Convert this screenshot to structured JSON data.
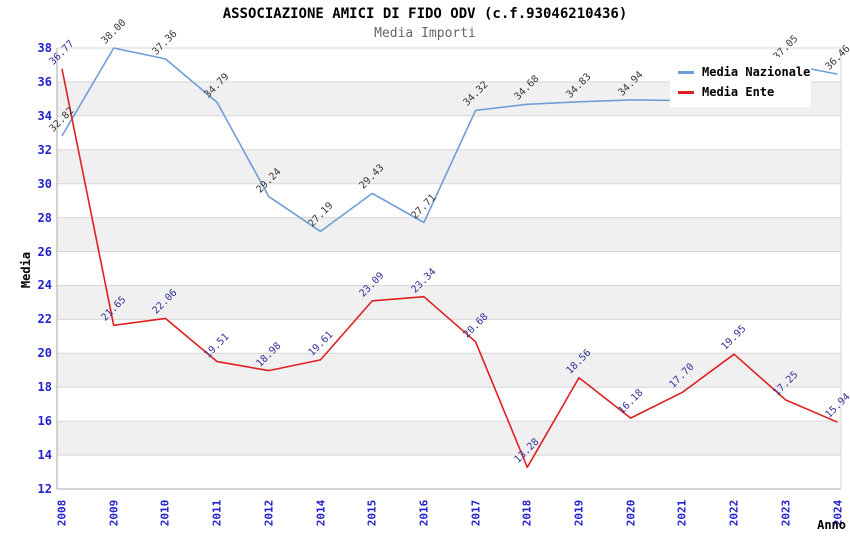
{
  "chart_data": {
    "type": "line",
    "title": "ASSOCIAZIONE AMICI DI FIDO ODV (c.f.93046210436)",
    "subtitle": "Media Importi",
    "xlabel": "Anno",
    "ylabel": "Media",
    "categories": [
      "2008",
      "2009",
      "2010",
      "2011",
      "2012",
      "2014",
      "2015",
      "2016",
      "2017",
      "2018",
      "2019",
      "2020",
      "2021",
      "2022",
      "2023",
      "2024"
    ],
    "ylim": [
      12,
      38
    ],
    "yticks": [
      12,
      14,
      16,
      18,
      20,
      22,
      24,
      26,
      28,
      30,
      32,
      34,
      36,
      38
    ],
    "grid": "horizontal gridlines with alternating gray bands",
    "legend_position": "top-right",
    "series": [
      {
        "name": "Media Nazionale",
        "color": "#6e9ed6",
        "label_color": "#3a3a3a",
        "values": [
          32.82,
          38.0,
          37.36,
          34.79,
          29.24,
          27.19,
          29.43,
          27.71,
          34.32,
          34.68,
          34.83,
          34.94,
          34.9,
          34.92,
          37.05,
          36.46
        ],
        "labels": [
          "32.82",
          "38.00",
          "37.36",
          "34.79",
          "29.24",
          "27.19",
          "29.43",
          "27.71",
          "34.32",
          "34.68",
          "34.83",
          "34.94",
          null,
          null,
          "37.05",
          "36.46"
        ]
      },
      {
        "name": "Media Ente",
        "color": "#e02020",
        "label_color": "#333399",
        "values": [
          36.77,
          21.65,
          22.06,
          19.51,
          18.98,
          19.61,
          23.09,
          23.34,
          20.68,
          13.28,
          18.56,
          16.18,
          17.7,
          19.95,
          17.25,
          15.94
        ],
        "labels": [
          "36.77",
          "21.65",
          "22.06",
          "19.51",
          "18.98",
          "19.61",
          "23.09",
          "23.34",
          "20.68",
          "13.28",
          "18.56",
          "16.18",
          "17.70",
          "19.95",
          "17.25",
          "15.94"
        ]
      }
    ]
  },
  "colors": {
    "axis_tick_labels": "#2222cc",
    "band_gray": "#f0f0f0",
    "band_white": "#ffffff",
    "gridline": "#d7d7d7",
    "axis_line": "#aaaaaa",
    "subtitle_text": "#666666"
  }
}
